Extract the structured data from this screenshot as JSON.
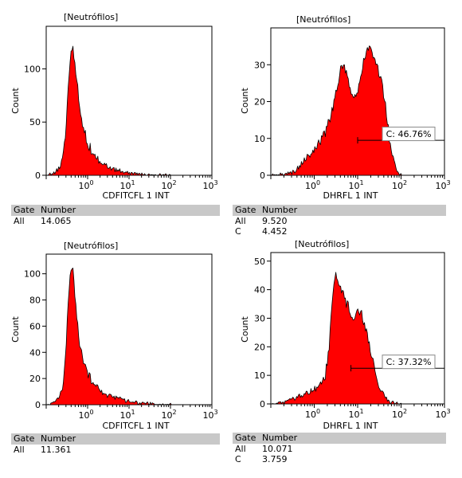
{
  "chart_data": [
    {
      "type": "area",
      "title": "[Neutrófilos]",
      "xlabel": "CDFITCFL 1 INT",
      "ylabel": "Count",
      "x_scale": "log",
      "xlim": [
        0.1,
        1000
      ],
      "ylim": [
        0,
        140
      ],
      "yticks": [
        0,
        50,
        100
      ],
      "xticks": [
        {
          "base": "10",
          "exp": "0"
        },
        {
          "base": "10",
          "exp": "1"
        },
        {
          "base": "10",
          "exp": "2"
        },
        {
          "base": "10",
          "exp": "3"
        }
      ],
      "fill_color": "#ff0000",
      "series": [
        {
          "x": [
            0.11,
            0.15,
            0.2,
            0.25,
            0.3,
            0.35,
            0.4,
            0.45,
            0.5,
            0.6,
            0.7,
            0.85,
            1.0,
            1.3,
            1.6,
            2.0,
            2.5,
            3.2,
            4,
            5,
            6.5,
            8,
            10,
            13,
            16,
            25,
            40,
            60,
            100,
            200,
            1000
          ],
          "y": [
            0,
            2,
            6,
            15,
            45,
            90,
            120,
            122,
            100,
            75,
            55,
            40,
            30,
            22,
            17,
            13,
            10,
            8,
            6,
            5,
            4,
            3,
            2,
            1.5,
            1,
            0.5,
            0.3,
            0.2,
            0,
            0,
            0
          ]
        }
      ],
      "stats": {
        "headers": [
          "Gate",
          "Number"
        ],
        "rows": [
          [
            "All",
            "14.065"
          ]
        ]
      }
    },
    {
      "type": "area",
      "title": "[Neutrófilos]",
      "xlabel": "DHRFL 1 INT",
      "ylabel": "Count",
      "x_scale": "log",
      "xlim": [
        0.1,
        1000
      ],
      "ylim": [
        0,
        40
      ],
      "yticks": [
        0,
        10,
        20,
        30
      ],
      "xticks": [
        {
          "base": "10",
          "exp": "0"
        },
        {
          "base": "10",
          "exp": "1"
        },
        {
          "base": "10",
          "exp": "2"
        },
        {
          "base": "10",
          "exp": "3"
        }
      ],
      "fill_color": "#ff0000",
      "series": [
        {
          "x": [
            0.1,
            0.15,
            0.25,
            0.35,
            0.5,
            0.7,
            1.0,
            1.4,
            2.0,
            2.7,
            3.5,
            4.2,
            5.0,
            6.0,
            7.5,
            9,
            11,
            14,
            18,
            22,
            28,
            35,
            45,
            55,
            70,
            85,
            100,
            1000
          ],
          "y": [
            0,
            0.2,
            0.5,
            1,
            3,
            5,
            7,
            9,
            13,
            18,
            25,
            29,
            30,
            26,
            22,
            21,
            25,
            32,
            34,
            33,
            30,
            26,
            18,
            9,
            3,
            1,
            0,
            0
          ]
        }
      ],
      "marker": {
        "label": "C: 46.76%",
        "x_start": 10,
        "x_end": 1000,
        "y": 9.5
      },
      "stats": {
        "headers": [
          "Gate",
          "Number"
        ],
        "rows": [
          [
            "All",
            "9.520"
          ],
          [
            "C",
            "4.452"
          ]
        ]
      }
    },
    {
      "type": "area",
      "title": "[Neutrófilos]",
      "xlabel": "CDFITCFL 1 INT",
      "ylabel": "Count",
      "x_scale": "log",
      "xlim": [
        0.1,
        1000
      ],
      "ylim": [
        0,
        115
      ],
      "yticks": [
        0,
        20,
        40,
        60,
        80,
        100
      ],
      "xticks": [
        {
          "base": "10",
          "exp": "0"
        },
        {
          "base": "10",
          "exp": "1"
        },
        {
          "base": "10",
          "exp": "2"
        },
        {
          "base": "10",
          "exp": "3"
        }
      ],
      "fill_color": "#ff0000",
      "series": [
        {
          "x": [
            0.11,
            0.15,
            0.2,
            0.25,
            0.3,
            0.35,
            0.4,
            0.45,
            0.5,
            0.6,
            0.7,
            0.85,
            1.0,
            1.3,
            1.6,
            2.0,
            2.5,
            3.2,
            4,
            5,
            6.5,
            8,
            10,
            13,
            16,
            25,
            40,
            60,
            100,
            200,
            1000
          ],
          "y": [
            0,
            1,
            5,
            14,
            45,
            85,
            103,
            100,
            80,
            55,
            40,
            30,
            24,
            18,
            14,
            11,
            9,
            7,
            6,
            5,
            4,
            3,
            2.5,
            2,
            1.5,
            1,
            0.5,
            0.3,
            0,
            0,
            0
          ]
        }
      ],
      "stats": {
        "headers": [
          "Gate",
          "Number"
        ],
        "rows": [
          [
            "All",
            "11.361"
          ]
        ]
      }
    },
    {
      "type": "area",
      "title": "[Neutrófilos]",
      "xlabel": "DHRFL 1 INT",
      "ylabel": "Count",
      "x_scale": "log",
      "xlim": [
        0.1,
        1000
      ],
      "ylim": [
        0,
        53
      ],
      "yticks": [
        0,
        10,
        20,
        30,
        40,
        50
      ],
      "xticks": [
        {
          "base": "10",
          "exp": "0"
        },
        {
          "base": "10",
          "exp": "1"
        },
        {
          "base": "10",
          "exp": "2"
        },
        {
          "base": "10",
          "exp": "3"
        }
      ],
      "fill_color": "#ff0000",
      "series": [
        {
          "x": [
            0.1,
            0.15,
            0.25,
            0.35,
            0.5,
            0.7,
            1.0,
            1.4,
            1.8,
            2.2,
            2.6,
            3.0,
            3.5,
            4.2,
            5.0,
            6.0,
            7.5,
            9,
            11,
            13,
            16,
            20,
            25,
            30,
            40,
            50,
            70,
            100,
            1000
          ],
          "y": [
            0,
            0.2,
            1,
            2,
            3,
            4,
            5,
            7,
            10,
            20,
            35,
            45,
            43,
            40,
            37,
            34,
            31,
            31,
            33,
            30,
            25,
            18,
            11,
            6,
            3,
            1,
            0.3,
            0,
            0
          ]
        }
      ],
      "marker": {
        "label": "C: 37.32%",
        "x_start": 7,
        "x_end": 1000,
        "y": 12.5
      },
      "stats": {
        "headers": [
          "Gate",
          "Number"
        ],
        "rows": [
          [
            "All",
            "10.071"
          ],
          [
            "C",
            "3.759"
          ]
        ]
      }
    }
  ]
}
